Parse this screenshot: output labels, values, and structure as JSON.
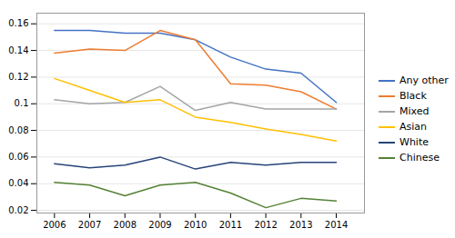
{
  "chart_data": {
    "type": "line",
    "x": [
      2006,
      2007,
      2008,
      2009,
      2010,
      2011,
      2012,
      2013,
      2014
    ],
    "series": [
      {
        "name": "Any other",
        "color": "#4472C4",
        "values": [
          0.155,
          0.155,
          0.153,
          0.153,
          0.148,
          0.135,
          0.126,
          0.123,
          0.101
        ]
      },
      {
        "name": "Black",
        "color": "#ED7D31",
        "values": [
          0.138,
          0.141,
          0.14,
          0.155,
          0.148,
          0.115,
          0.114,
          0.109,
          0.096
        ]
      },
      {
        "name": "Mixed",
        "color": "#A5A5A5",
        "values": [
          0.103,
          0.1,
          0.101,
          0.113,
          0.095,
          0.101,
          0.096,
          0.096,
          0.096
        ]
      },
      {
        "name": "Asian",
        "color": "#FFC000",
        "values": [
          0.119,
          0.11,
          0.101,
          0.103,
          0.09,
          0.086,
          0.081,
          0.077,
          0.072
        ]
      },
      {
        "name": "White",
        "color": "#264478",
        "values": [
          0.055,
          0.052,
          0.054,
          0.06,
          0.051,
          0.056,
          0.054,
          0.056,
          0.056
        ]
      },
      {
        "name": "Chinese",
        "color": "#548235",
        "values": [
          0.041,
          0.039,
          0.031,
          0.039,
          0.041,
          0.033,
          0.022,
          0.029,
          0.027
        ]
      }
    ],
    "xlim": [
      2005.5,
      2014.8
    ],
    "ylim": [
      0.018,
      0.168
    ],
    "xticks": [
      2006,
      2007,
      2008,
      2009,
      2010,
      2011,
      2012,
      2013,
      2014
    ],
    "yticks": [
      0.02,
      0.04,
      0.06,
      0.08,
      0.1,
      0.12,
      0.14,
      0.16
    ],
    "grid": true,
    "legend": "right"
  }
}
